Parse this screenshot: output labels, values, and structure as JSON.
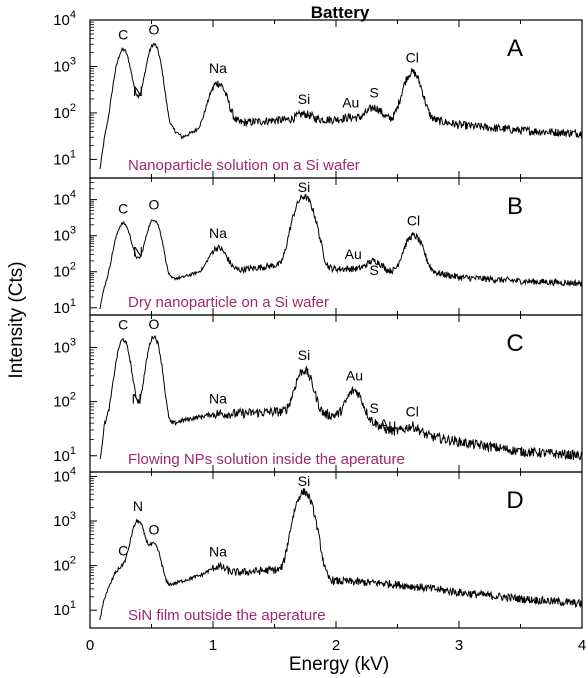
{
  "chart_data": {
    "type": "line",
    "title": "Battery",
    "xlabel": "Energy (kV)",
    "ylabel": "Intensity (Cts)",
    "xlim": [
      0,
      4
    ],
    "x_ticks": [
      "0",
      "1",
      "2",
      "3",
      "4"
    ],
    "y_scale": "log",
    "caption_color": "#a0286e",
    "line_color": "#000000",
    "panels": [
      {
        "letter": "A",
        "caption": "Nanoparticle solution on a Si wafer",
        "ylim_log": [
          0.6,
          4
        ],
        "y_ticks": [
          {
            "base": "10",
            "exp": "1",
            "log": 1
          },
          {
            "base": "10",
            "exp": "2",
            "log": 2
          },
          {
            "base": "10",
            "exp": "3",
            "log": 3
          },
          {
            "base": "10",
            "exp": "4",
            "log": 4
          }
        ],
        "start": 0.08,
        "peaks": [
          {
            "label": "C",
            "x": 0.27,
            "y": 2300
          },
          {
            "label": "N",
            "x": 0.39,
            "y": 140
          },
          {
            "label": "O",
            "x": 0.52,
            "y": 3000
          },
          {
            "label": "Na",
            "x": 1.04,
            "y": 440
          },
          {
            "label": "Si",
            "x": 1.74,
            "y": 95
          },
          {
            "label": "Au",
            "x": 2.12,
            "y": 80
          },
          {
            "label": "S",
            "x": 2.31,
            "y": 130
          },
          {
            "label": "Cl",
            "x": 2.62,
            "y": 750
          }
        ],
        "background": [
          [
            0.08,
            6
          ],
          [
            0.12,
            30
          ],
          [
            0.2,
            200
          ],
          [
            0.45,
            200
          ],
          [
            0.62,
            60
          ],
          [
            0.75,
            30
          ],
          [
            0.85,
            40
          ],
          [
            0.95,
            50
          ],
          [
            1.2,
            60
          ],
          [
            1.5,
            70
          ],
          [
            2.0,
            72
          ],
          [
            2.4,
            70
          ],
          [
            2.8,
            70
          ],
          [
            3.0,
            55
          ],
          [
            3.5,
            42
          ],
          [
            4.0,
            36
          ]
        ]
      },
      {
        "letter": "B",
        "caption": "Dry nanoparticle on a Si wafer",
        "ylim_log": [
          0.8,
          4.6
        ],
        "y_ticks": [
          {
            "base": "10",
            "exp": "1",
            "log": 1
          },
          {
            "base": "10",
            "exp": "2",
            "log": 2
          },
          {
            "base": "10",
            "exp": "3",
            "log": 3
          },
          {
            "base": "10",
            "exp": "4",
            "log": 4
          }
        ],
        "start": 0.08,
        "peaks": [
          {
            "label": "C",
            "x": 0.27,
            "y": 2200
          },
          {
            "label": "N",
            "x": 0.39,
            "y": 140
          },
          {
            "label": "O",
            "x": 0.52,
            "y": 2800
          },
          {
            "label": "Na",
            "x": 1.04,
            "y": 460
          },
          {
            "label": "Si",
            "x": 1.74,
            "y": 12000
          },
          {
            "label": "Au",
            "x": 2.14,
            "y": 120
          },
          {
            "label": "S",
            "x": 2.31,
            "y": 200
          },
          {
            "label": "Cl",
            "x": 2.63,
            "y": 1000
          }
        ],
        "background": [
          [
            0.08,
            10
          ],
          [
            0.12,
            40
          ],
          [
            0.2,
            200
          ],
          [
            0.45,
            200
          ],
          [
            0.62,
            60
          ],
          [
            0.75,
            70
          ],
          [
            0.85,
            90
          ],
          [
            0.95,
            100
          ],
          [
            1.2,
            110
          ],
          [
            1.5,
            150
          ],
          [
            2.0,
            120
          ],
          [
            2.4,
            100
          ],
          [
            2.8,
            95
          ],
          [
            3.0,
            70
          ],
          [
            3.5,
            55
          ],
          [
            4.0,
            48
          ]
        ]
      },
      {
        "letter": "C",
        "caption": "Flowing NPs solution inside the aperature",
        "ylim_log": [
          0.7,
          3.6
        ],
        "y_ticks": [
          {
            "base": "10",
            "exp": "1",
            "log": 1
          },
          {
            "base": "10",
            "exp": "2",
            "log": 2
          },
          {
            "base": "10",
            "exp": "3",
            "log": 3
          }
        ],
        "start": 0.08,
        "peaks": [
          {
            "label": "C",
            "x": 0.27,
            "y": 1400
          },
          {
            "label": "N",
            "x": 0.38,
            "y": 60
          },
          {
            "label": "O",
            "x": 0.52,
            "y": 1600
          },
          {
            "label": "Na",
            "x": 1.04,
            "y": 60
          },
          {
            "label": "Si",
            "x": 1.74,
            "y": 380
          },
          {
            "label": "Au",
            "x": 2.15,
            "y": 160
          },
          {
            "label": "S",
            "x": 2.31,
            "y": 40
          },
          {
            "label": "Au",
            "x": 2.42,
            "y": 25
          },
          {
            "label": "Cl",
            "x": 2.62,
            "y": 35
          }
        ],
        "background": [
          [
            0.08,
            8
          ],
          [
            0.12,
            40
          ],
          [
            0.2,
            80
          ],
          [
            0.45,
            80
          ],
          [
            0.62,
            35
          ],
          [
            0.75,
            45
          ],
          [
            0.85,
            50
          ],
          [
            0.95,
            55
          ],
          [
            1.2,
            60
          ],
          [
            1.5,
            65
          ],
          [
            2.0,
            55
          ],
          [
            2.4,
            30
          ],
          [
            2.8,
            22
          ],
          [
            3.0,
            18
          ],
          [
            3.5,
            12
          ],
          [
            4.0,
            10
          ]
        ]
      },
      {
        "letter": "D",
        "caption": "SiN film outside the aperature",
        "ylim_log": [
          0.6,
          4.1
        ],
        "y_ticks": [
          {
            "base": "10",
            "exp": "1",
            "log": 1
          },
          {
            "base": "10",
            "exp": "2",
            "log": 2
          },
          {
            "base": "10",
            "exp": "3",
            "log": 3
          },
          {
            "base": "10",
            "exp": "4",
            "log": 4
          }
        ],
        "start": 0.08,
        "peaks": [
          {
            "label": "C",
            "x": 0.27,
            "y": 100
          },
          {
            "label": "N",
            "x": 0.39,
            "y": 1000
          },
          {
            "label": "O",
            "x": 0.52,
            "y": 300
          },
          {
            "label": "Na",
            "x": 1.04,
            "y": 95
          },
          {
            "label": "Si",
            "x": 1.74,
            "y": 4500
          }
        ],
        "background": [
          [
            0.08,
            6
          ],
          [
            0.12,
            20
          ],
          [
            0.2,
            60
          ],
          [
            0.3,
            80
          ],
          [
            0.45,
            90
          ],
          [
            0.62,
            35
          ],
          [
            0.75,
            45
          ],
          [
            0.85,
            55
          ],
          [
            0.95,
            65
          ],
          [
            1.2,
            70
          ],
          [
            1.5,
            80
          ],
          [
            2.0,
            45
          ],
          [
            2.4,
            40
          ],
          [
            2.8,
            30
          ],
          [
            3.0,
            25
          ],
          [
            3.5,
            18
          ],
          [
            4.0,
            14
          ]
        ]
      }
    ]
  }
}
